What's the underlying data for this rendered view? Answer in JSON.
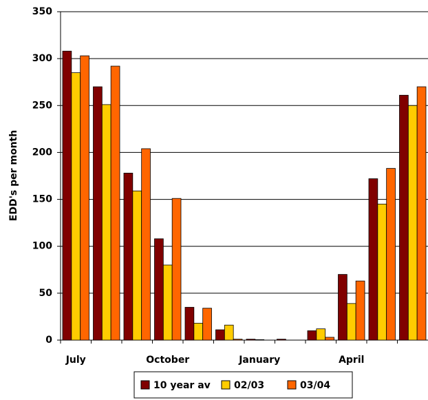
{
  "chart_data": {
    "type": "bar",
    "y_label": "EDD's per month",
    "categories": [
      "July",
      null,
      null,
      "October",
      null,
      null,
      "January",
      null,
      null,
      "April",
      null,
      null
    ],
    "series": [
      {
        "name": "10 year av",
        "color": "#800000",
        "values": [
          308,
          270,
          178,
          108,
          35,
          11,
          1,
          1,
          10,
          70,
          172,
          261
        ]
      },
      {
        "name": "02/03",
        "color": "#ffcc00",
        "values": [
          285,
          251,
          159,
          80,
          18,
          16,
          0.5,
          0,
          12,
          39,
          145,
          250
        ]
      },
      {
        "name": "03/04",
        "color": "#ff6600",
        "values": [
          303,
          292,
          204,
          151,
          34,
          1,
          0,
          0,
          3,
          63,
          183,
          270
        ]
      }
    ],
    "ylim": [
      0,
      350
    ],
    "yticks": [
      0,
      50,
      100,
      150,
      200,
      250,
      300,
      350
    ],
    "grid": true
  }
}
